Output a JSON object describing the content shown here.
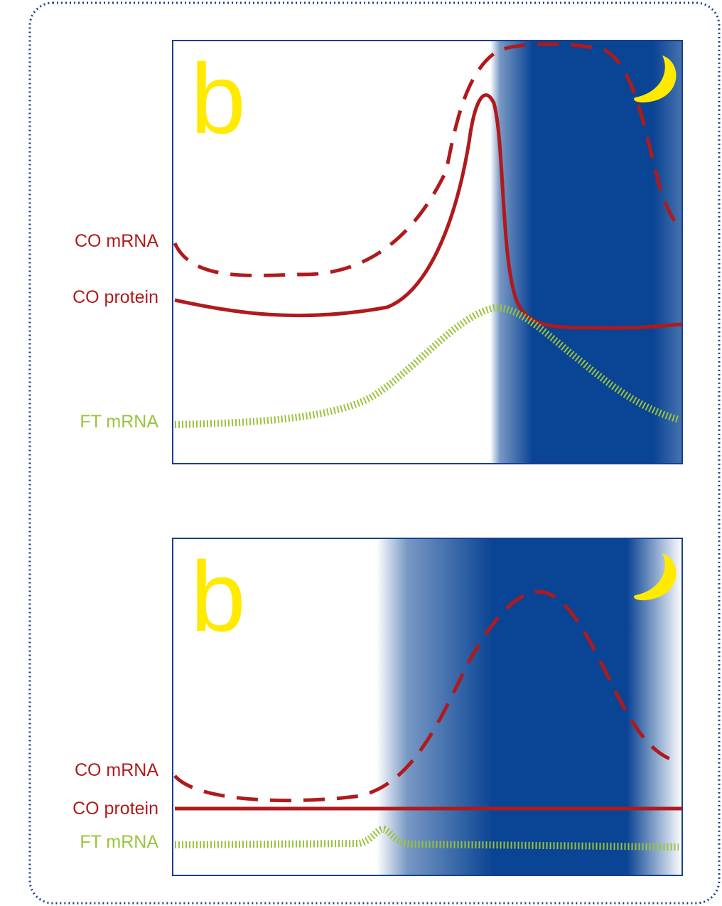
{
  "colors": {
    "co": "#b01a1d",
    "ft": "#9ac43c",
    "night": "#0a4494",
    "letter": "#ffea00",
    "moon": "#ffea00",
    "border": "#1a3f8f"
  },
  "panels": [
    {
      "letter": "b",
      "night_icon": "moon-icon",
      "labels": {
        "co_mrna": "CO mRNA",
        "co_protein": "CO protein",
        "ft_mrna": "FT mRNA"
      }
    },
    {
      "letter": "b",
      "night_icon": "moon-icon",
      "labels": {
        "co_mrna": "CO mRNA",
        "co_protein": "CO protein",
        "ft_mrna": "FT mRNA"
      }
    }
  ]
}
